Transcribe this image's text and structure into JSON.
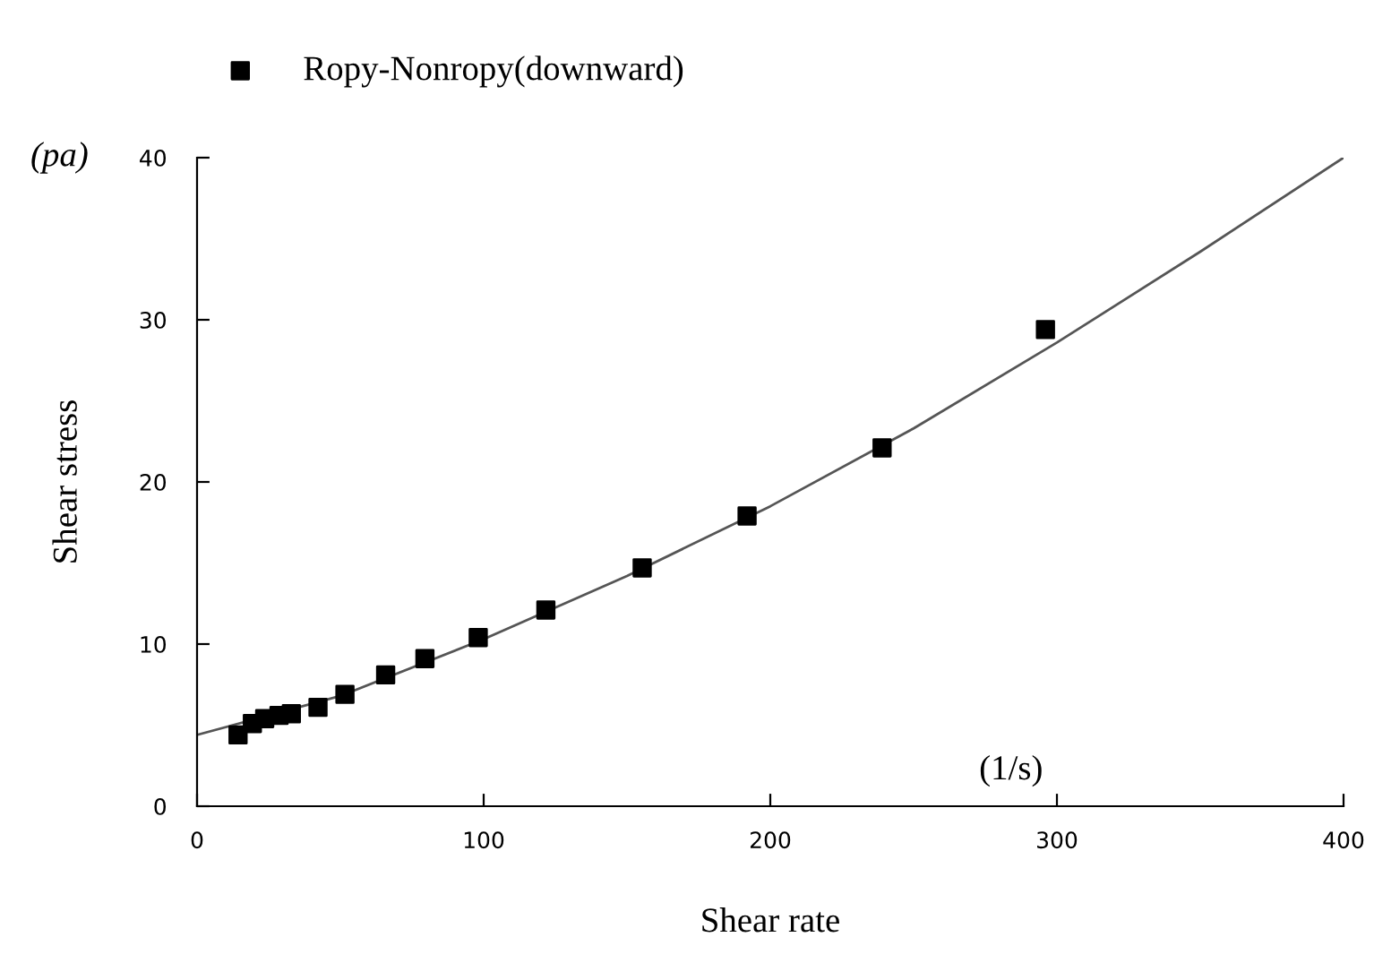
{
  "chart_data": {
    "type": "scatter",
    "xlabel": "Shear rate",
    "ylabel": "Shear stress",
    "annotations": [
      "(pa)",
      "(1/s)"
    ],
    "xlim": [
      0,
      400
    ],
    "xticks": [
      0,
      100,
      200,
      300,
      400
    ],
    "ylim": [
      0,
      40
    ],
    "yticks": [
      0,
      10,
      20,
      30,
      40
    ],
    "marker": "square",
    "legend": "top left",
    "grid": false,
    "series": [
      {
        "name": "Ropy-Nonropy(downward)",
        "color": "#000000",
        "x": [
          14.3,
          19.3,
          23.6,
          28.6,
          32.9,
          42.2,
          51.6,
          65.8,
          79.5,
          98.1,
          121.7,
          155.3,
          191.9,
          239,
          296
        ],
        "values": [
          4.4,
          5.1,
          5.4,
          5.6,
          5.7,
          6.1,
          6.9,
          8.1,
          9.1,
          10.4,
          12.1,
          14.7,
          17.9,
          22.1,
          29.4
        ]
      },
      {
        "type": "line",
        "color": "#555555",
        "x": [
          0,
          50,
          100,
          150,
          200,
          250,
          300,
          350,
          400
        ],
        "values": [
          4.4,
          6.8,
          10.3,
          14.2,
          18.5,
          23.3,
          28.6,
          34.2,
          40
        ],
        "marker": "none"
      }
    ]
  }
}
